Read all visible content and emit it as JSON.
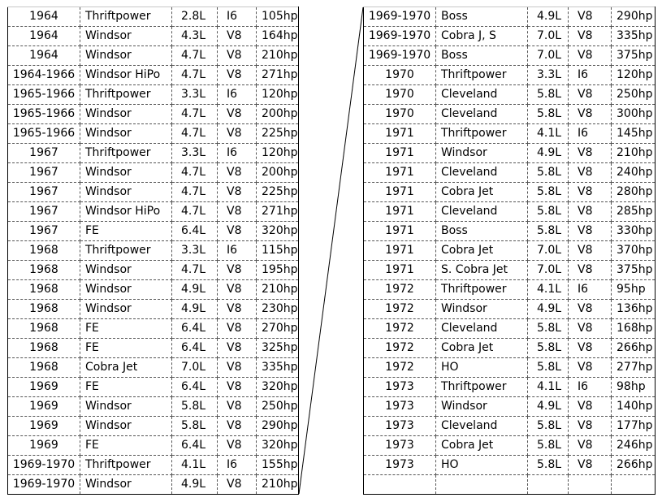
{
  "left_rows": [
    {
      "year": "1964",
      "family": "Thriftpower",
      "displacement": "2.8L",
      "layout": "I6",
      "power": "105hp"
    },
    {
      "year": "1964",
      "family": "Windsor",
      "displacement": "4.3L",
      "layout": "V8",
      "power": "164hp"
    },
    {
      "year": "1964",
      "family": "Windsor",
      "displacement": "4.7L",
      "layout": "V8",
      "power": "210hp"
    },
    {
      "year": "1964-1966",
      "family": "Windsor HiPo",
      "displacement": "4.7L",
      "layout": "V8",
      "power": "271hp"
    },
    {
      "year": "1965-1966",
      "family": "Thriftpower",
      "displacement": "3.3L",
      "layout": "I6",
      "power": "120hp"
    },
    {
      "year": "1965-1966",
      "family": "Windsor",
      "displacement": "4.7L",
      "layout": "V8",
      "power": "200hp"
    },
    {
      "year": "1965-1966",
      "family": "Windsor",
      "displacement": "4.7L",
      "layout": "V8",
      "power": "225hp"
    },
    {
      "year": "1967",
      "family": "Thriftpower",
      "displacement": "3.3L",
      "layout": "I6",
      "power": "120hp"
    },
    {
      "year": "1967",
      "family": "Windsor",
      "displacement": "4.7L",
      "layout": "V8",
      "power": "200hp"
    },
    {
      "year": "1967",
      "family": "Windsor",
      "displacement": "4.7L",
      "layout": "V8",
      "power": "225hp"
    },
    {
      "year": "1967",
      "family": "Windsor HiPo",
      "displacement": "4.7L",
      "layout": "V8",
      "power": "271hp"
    },
    {
      "year": "1967",
      "family": "FE",
      "displacement": "6.4L",
      "layout": "V8",
      "power": "320hp"
    },
    {
      "year": "1968",
      "family": "Thriftpower",
      "displacement": "3.3L",
      "layout": "I6",
      "power": "115hp"
    },
    {
      "year": "1968",
      "family": "Windsor",
      "displacement": "4.7L",
      "layout": "V8",
      "power": "195hp"
    },
    {
      "year": "1968",
      "family": "Windsor",
      "displacement": "4.9L",
      "layout": "V8",
      "power": "210hp"
    },
    {
      "year": "1968",
      "family": "Windsor",
      "displacement": "4.9L",
      "layout": "V8",
      "power": "230hp"
    },
    {
      "year": "1968",
      "family": "FE",
      "displacement": "6.4L",
      "layout": "V8",
      "power": "270hp"
    },
    {
      "year": "1968",
      "family": "FE",
      "displacement": "6.4L",
      "layout": "V8",
      "power": "325hp"
    },
    {
      "year": "1968",
      "family": "Cobra Jet",
      "displacement": "7.0L",
      "layout": "V8",
      "power": "335hp"
    },
    {
      "year": "1969",
      "family": "FE",
      "displacement": "6.4L",
      "layout": "V8",
      "power": "320hp"
    },
    {
      "year": "1969",
      "family": "Windsor",
      "displacement": "5.8L",
      "layout": "V8",
      "power": "250hp"
    },
    {
      "year": "1969",
      "family": "Windsor",
      "displacement": "5.8L",
      "layout": "V8",
      "power": "290hp"
    },
    {
      "year": "1969",
      "family": "FE",
      "displacement": "6.4L",
      "layout": "V8",
      "power": "320hp"
    },
    {
      "year": "1969-1970",
      "family": "Thriftpower",
      "displacement": "4.1L",
      "layout": "I6",
      "power": "155hp"
    },
    {
      "year": "1969-1970",
      "family": "Windsor",
      "displacement": "4.9L",
      "layout": "V8",
      "power": "210hp"
    }
  ],
  "right_rows": [
    {
      "year": "1969-1970",
      "family": "Boss",
      "displacement": "4.9L",
      "layout": "V8",
      "power": "290hp"
    },
    {
      "year": "1969-1970",
      "family": "Cobra J, S",
      "displacement": "7.0L",
      "layout": "V8",
      "power": "335hp"
    },
    {
      "year": "1969-1970",
      "family": "Boss",
      "displacement": "7.0L",
      "layout": "V8",
      "power": "375hp"
    },
    {
      "year": "1970",
      "family": "Thriftpower",
      "displacement": "3.3L",
      "layout": "I6",
      "power": "120hp"
    },
    {
      "year": "1970",
      "family": "Cleveland",
      "displacement": "5.8L",
      "layout": "V8",
      "power": "250hp"
    },
    {
      "year": "1970",
      "family": "Cleveland",
      "displacement": "5.8L",
      "layout": "V8",
      "power": "300hp"
    },
    {
      "year": "1971",
      "family": "Thriftpower",
      "displacement": "4.1L",
      "layout": "I6",
      "power": "145hp"
    },
    {
      "year": "1971",
      "family": "Windsor",
      "displacement": "4.9L",
      "layout": "V8",
      "power": "210hp"
    },
    {
      "year": "1971",
      "family": "Cleveland",
      "displacement": "5.8L",
      "layout": "V8",
      "power": "240hp"
    },
    {
      "year": "1971",
      "family": "Cobra Jet",
      "displacement": "5.8L",
      "layout": "V8",
      "power": "280hp"
    },
    {
      "year": "1971",
      "family": "Cleveland",
      "displacement": "5.8L",
      "layout": "V8",
      "power": "285hp"
    },
    {
      "year": "1971",
      "family": "Boss",
      "displacement": "5.8L",
      "layout": "V8",
      "power": "330hp"
    },
    {
      "year": "1971",
      "family": "Cobra Jet",
      "displacement": "7.0L",
      "layout": "V8",
      "power": "370hp"
    },
    {
      "year": "1971",
      "family": "S. Cobra Jet",
      "displacement": "7.0L",
      "layout": "V8",
      "power": "375hp"
    },
    {
      "year": "1972",
      "family": "Thriftpower",
      "displacement": "4.1L",
      "layout": "I6",
      "power": "95hp"
    },
    {
      "year": "1972",
      "family": "Windsor",
      "displacement": "4.9L",
      "layout": "V8",
      "power": "136hp"
    },
    {
      "year": "1972",
      "family": "Cleveland",
      "displacement": "5.8L",
      "layout": "V8",
      "power": "168hp"
    },
    {
      "year": "1972",
      "family": "Cobra Jet",
      "displacement": "5.8L",
      "layout": "V8",
      "power": "266hp"
    },
    {
      "year": "1972",
      "family": "HO",
      "displacement": "5.8L",
      "layout": "V8",
      "power": "277hp"
    },
    {
      "year": "1973",
      "family": "Thriftpower",
      "displacement": "4.1L",
      "layout": "I6",
      "power": "98hp"
    },
    {
      "year": "1973",
      "family": "Windsor",
      "displacement": "4.9L",
      "layout": "V8",
      "power": "140hp"
    },
    {
      "year": "1973",
      "family": "Cleveland",
      "displacement": "5.8L",
      "layout": "V8",
      "power": "177hp"
    },
    {
      "year": "1973",
      "family": "Cobra Jet",
      "displacement": "5.8L",
      "layout": "V8",
      "power": "246hp"
    },
    {
      "year": "1973",
      "family": "HO",
      "displacement": "5.8L",
      "layout": "V8",
      "power": "266hp"
    },
    {
      "year": "",
      "family": "",
      "displacement": "",
      "layout": "",
      "power": ""
    }
  ]
}
